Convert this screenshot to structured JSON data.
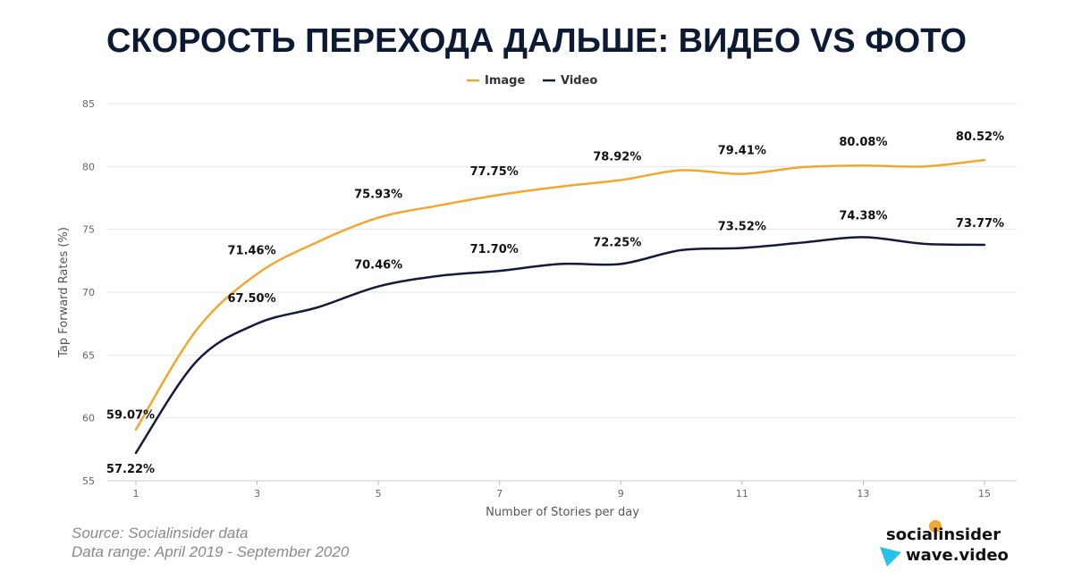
{
  "chart_data": {
    "type": "line",
    "title": "СКОРОСТЬ ПЕРЕХОДА ДАЛЬШЕ: ВИДЕО VS ФОТО",
    "xlabel": "Number of Stories per day",
    "ylabel": "Tap Forward Rates (%)",
    "xlim": [
      1,
      15
    ],
    "ylim": [
      55,
      85
    ],
    "x_ticks": [
      1,
      3,
      5,
      7,
      9,
      11,
      13,
      15
    ],
    "y_ticks": [
      55,
      60,
      65,
      70,
      75,
      80,
      85
    ],
    "legend": "top-center",
    "grid": true,
    "series": [
      {
        "name": "Image",
        "color": "#f0a830",
        "points": [
          {
            "x": 1,
            "y": 59.07
          },
          {
            "x": 2,
            "y": 67.0
          },
          {
            "x": 3,
            "y": 71.46
          },
          {
            "x": 4,
            "y": 74.0
          },
          {
            "x": 5,
            "y": 75.93
          },
          {
            "x": 6,
            "y": 76.9
          },
          {
            "x": 7,
            "y": 77.75
          },
          {
            "x": 8,
            "y": 78.4
          },
          {
            "x": 9,
            "y": 78.92
          },
          {
            "x": 10,
            "y": 79.7
          },
          {
            "x": 11,
            "y": 79.41
          },
          {
            "x": 12,
            "y": 79.95
          },
          {
            "x": 13,
            "y": 80.08
          },
          {
            "x": 14,
            "y": 80.0
          },
          {
            "x": 15,
            "y": 80.52
          }
        ],
        "labels": [
          {
            "x": 1,
            "y": 59.07,
            "text": "59.07%"
          },
          {
            "x": 3,
            "y": 71.46,
            "text": "71.46%"
          },
          {
            "x": 5,
            "y": 75.93,
            "text": "75.93%"
          },
          {
            "x": 7,
            "y": 77.75,
            "text": "77.75%"
          },
          {
            "x": 9,
            "y": 78.92,
            "text": "78.92%"
          },
          {
            "x": 11,
            "y": 79.41,
            "text": "79.41%"
          },
          {
            "x": 13,
            "y": 80.08,
            "text": "80.08%"
          },
          {
            "x": 15,
            "y": 80.52,
            "text": "80.52%"
          }
        ]
      },
      {
        "name": "Video",
        "color": "#141a3a",
        "points": [
          {
            "x": 1,
            "y": 57.22
          },
          {
            "x": 2,
            "y": 64.5
          },
          {
            "x": 3,
            "y": 67.5
          },
          {
            "x": 4,
            "y": 68.8
          },
          {
            "x": 5,
            "y": 70.46
          },
          {
            "x": 6,
            "y": 71.3
          },
          {
            "x": 7,
            "y": 71.7
          },
          {
            "x": 8,
            "y": 72.25
          },
          {
            "x": 9,
            "y": 72.25
          },
          {
            "x": 10,
            "y": 73.35
          },
          {
            "x": 11,
            "y": 73.52
          },
          {
            "x": 12,
            "y": 73.95
          },
          {
            "x": 13,
            "y": 74.38
          },
          {
            "x": 14,
            "y": 73.85
          },
          {
            "x": 15,
            "y": 73.77
          }
        ],
        "labels": [
          {
            "x": 1,
            "y": 57.22,
            "text": "57.22%"
          },
          {
            "x": 3,
            "y": 67.5,
            "text": "67.50%"
          },
          {
            "x": 5,
            "y": 70.46,
            "text": "70.46%"
          },
          {
            "x": 7,
            "y": 71.7,
            "text": "71.70%"
          },
          {
            "x": 9,
            "y": 72.25,
            "text": "72.25%"
          },
          {
            "x": 11,
            "y": 73.52,
            "text": "73.52%"
          },
          {
            "x": 13,
            "y": 74.38,
            "text": "74.38%"
          },
          {
            "x": 15,
            "y": 73.77,
            "text": "73.77%"
          }
        ]
      }
    ]
  },
  "footer": {
    "source": "Source: Socialinsider data",
    "range": "Data range: April 2019 - September 2020"
  },
  "logos": {
    "socialinsider": "socialinsider",
    "wavevideo": "wave.video",
    "socialinsider_color": "#f0a830",
    "wavevideo_color": "#27c3e6"
  }
}
